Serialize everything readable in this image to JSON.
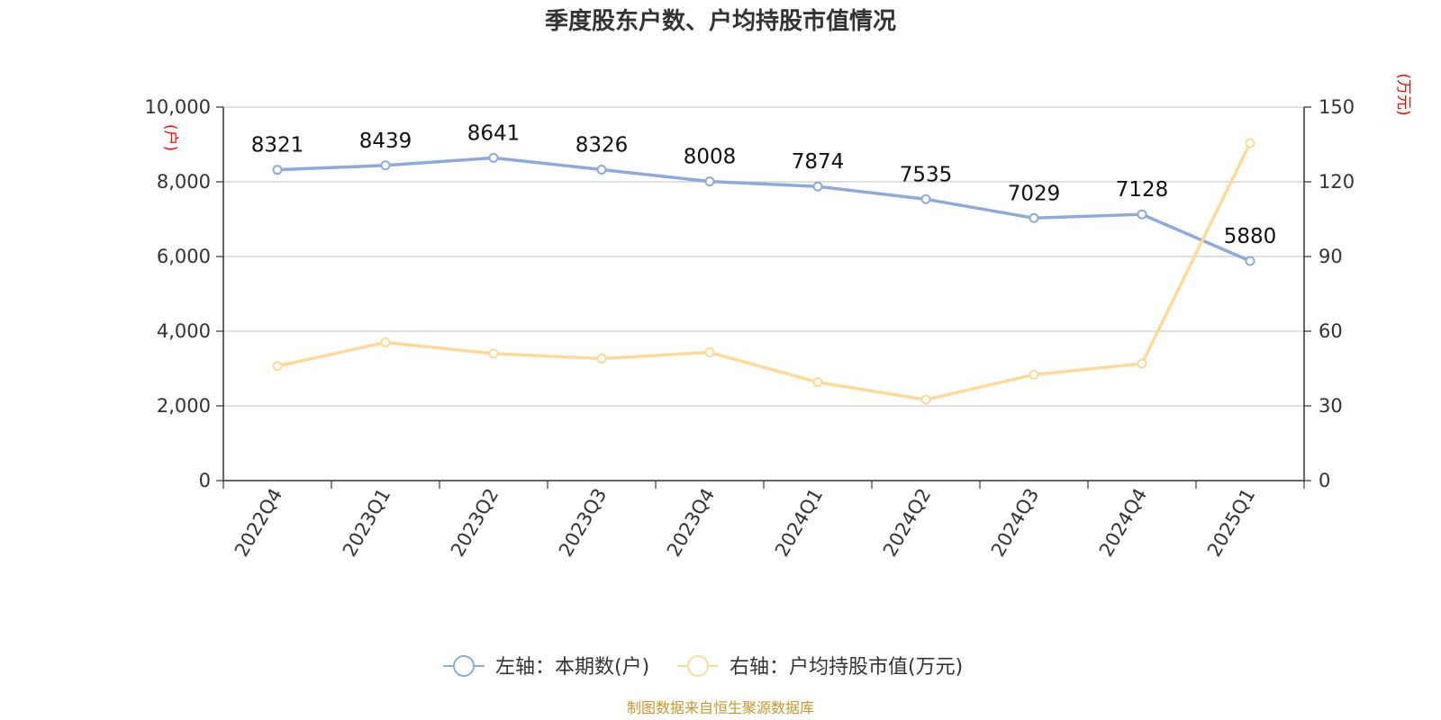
{
  "chart_data": {
    "type": "line",
    "title": "季度股东户数、户均持股市值情况",
    "categories": [
      "2022Q4",
      "2023Q1",
      "2023Q2",
      "2023Q3",
      "2023Q4",
      "2024Q1",
      "2024Q2",
      "2024Q3",
      "2024Q4",
      "2025Q1"
    ],
    "y_left": {
      "unit_label": "(户)",
      "range": [
        0,
        10000
      ],
      "ticks": [
        0,
        2000,
        4000,
        6000,
        8000,
        10000
      ],
      "tick_labels": [
        "0",
        "2,000",
        "4,000",
        "6,000",
        "8,000",
        "10,000"
      ]
    },
    "y_right": {
      "unit_label": "(万元)",
      "range": [
        0,
        150
      ],
      "ticks": [
        0,
        30,
        60,
        90,
        120,
        150
      ],
      "tick_labels": [
        "0",
        "30",
        "60",
        "90",
        "120",
        "150"
      ]
    },
    "series": [
      {
        "name": "左轴：本期数(户)",
        "axis": "left",
        "color": "#8eaadb",
        "values": [
          8321,
          8439,
          8641,
          8326,
          8008,
          7874,
          7535,
          7029,
          7128,
          5880
        ],
        "show_labels": true
      },
      {
        "name": "右轴：户均持股市值(万元)",
        "axis": "right",
        "color": "#ffd998",
        "values": [
          46,
          55.5,
          51,
          49,
          51.5,
          39.5,
          32.5,
          42.5,
          47,
          135.5
        ],
        "show_labels": false
      }
    ],
    "grid": true,
    "legend_position": "bottom-center"
  },
  "source_text": "制图数据来自恒生聚源数据库"
}
